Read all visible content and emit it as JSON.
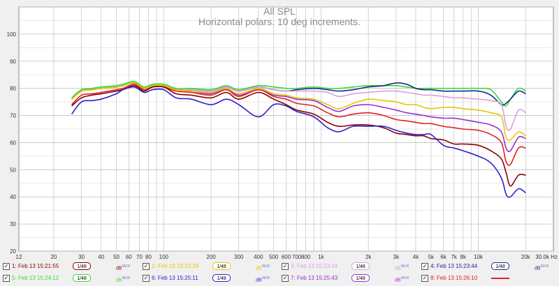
{
  "chart_data": {
    "type": "line",
    "title": "All SPL",
    "subtitle": "Horizontal polars. 10 deg increments.",
    "xscale": "log",
    "xlim": [
      12,
      30000
    ],
    "ylim": [
      20,
      110
    ],
    "x_ticks": [
      {
        "v": 12,
        "t": "12"
      },
      {
        "v": 20,
        "t": "20"
      },
      {
        "v": 30,
        "t": "30"
      },
      {
        "v": 40,
        "t": "40"
      },
      {
        "v": 50,
        "t": "50"
      },
      {
        "v": 60,
        "t": "60"
      },
      {
        "v": 70,
        "t": "70"
      },
      {
        "v": 80,
        "t": "80"
      },
      {
        "v": 100,
        "t": "100"
      },
      {
        "v": 200,
        "t": "200"
      },
      {
        "v": 300,
        "t": "300"
      },
      {
        "v": 400,
        "t": "400"
      },
      {
        "v": 500,
        "t": "500"
      },
      {
        "v": 600,
        "t": "600"
      },
      {
        "v": 700,
        "t": "700"
      },
      {
        "v": 800,
        "t": "800"
      },
      {
        "v": 1000,
        "t": "1k"
      },
      {
        "v": 2000,
        "t": "2k"
      },
      {
        "v": 3000,
        "t": "3k"
      },
      {
        "v": 4000,
        "t": "4k"
      },
      {
        "v": 5000,
        "t": "5k"
      },
      {
        "v": 6000,
        "t": "6k"
      },
      {
        "v": 7000,
        "t": "7k"
      },
      {
        "v": 8000,
        "t": "8k"
      },
      {
        "v": 10000,
        "t": "10k"
      },
      {
        "v": 20000,
        "t": "20k"
      },
      {
        "v": 30000,
        "t": "30.0k Hz"
      }
    ],
    "y_ticks": [
      20,
      30,
      40,
      50,
      60,
      70,
      80,
      90,
      100
    ],
    "grid": true,
    "x": [
      26,
      30,
      35,
      40,
      50,
      55,
      65,
      75,
      85,
      100,
      120,
      150,
      200,
      250,
      300,
      400,
      500,
      600,
      700,
      900,
      1100,
      1300,
      1600,
      2000,
      2500,
      3000,
      3500,
      4000,
      4500,
      5000,
      6000,
      7000,
      8000,
      10000,
      12000,
      14000,
      15000,
      16000,
      18000,
      20000
    ],
    "series": [
      {
        "name": "1: Feb 13 15:21:55",
        "color": "#8b0000",
        "values": [
          73.5,
          76.5,
          77.5,
          78,
          79,
          79.5,
          81,
          79,
          80.5,
          80.5,
          78,
          77.5,
          76.5,
          78.5,
          76,
          78.5,
          76,
          74,
          72,
          70.5,
          67.5,
          66,
          66.5,
          66.5,
          65.5,
          63.5,
          63,
          62.5,
          62.5,
          61.5,
          61,
          59.5,
          59.5,
          59,
          57,
          54,
          49,
          44,
          48,
          48
        ]
      },
      {
        "name": "2: Feb 13 15:22:29",
        "color": "#e6c800",
        "values": [
          76,
          79,
          79.5,
          80,
          80.5,
          81,
          82,
          80,
          81,
          81,
          79.5,
          79,
          78.5,
          80,
          78,
          80,
          78,
          77.5,
          76.5,
          76,
          74,
          72.5,
          74.5,
          76,
          75.5,
          75,
          74,
          74,
          73,
          72.5,
          73,
          73,
          72.5,
          72,
          71,
          69.5,
          62,
          61,
          64,
          62.5
        ]
      },
      {
        "name": "3: Feb 13 15:23:14",
        "color": "#d8a0e0",
        "values": [
          76,
          79,
          79.5,
          80,
          80.5,
          81,
          82,
          80,
          81,
          81,
          79.5,
          79.5,
          79,
          80.5,
          79,
          80.5,
          79.5,
          79,
          79,
          79,
          78.5,
          77,
          78,
          78.5,
          79,
          79,
          78.5,
          78,
          77.5,
          77.5,
          77,
          76.5,
          76.5,
          76,
          75.5,
          74,
          66,
          65,
          72,
          71
        ]
      },
      {
        "name": "4: Feb 13 15:23:44",
        "color": "#1e2a8c",
        "values": [
          76,
          79,
          79.5,
          80,
          80.5,
          81,
          82,
          80,
          81,
          81,
          79.5,
          79.5,
          79,
          80.5,
          79,
          80.5,
          79.5,
          79,
          79.5,
          80,
          79.5,
          79,
          79.5,
          80.5,
          81,
          82,
          81.5,
          80,
          79.5,
          79.5,
          79,
          79,
          79,
          79,
          77.5,
          74,
          74.5,
          76,
          79,
          78
        ]
      },
      {
        "name": "5: Feb 13 15:24:12",
        "color": "#33dd33",
        "values": [
          76.5,
          79.5,
          80,
          80.5,
          81,
          81.5,
          82.5,
          80.5,
          81.5,
          81.5,
          80,
          80,
          79.5,
          81,
          79.5,
          81,
          80.5,
          80,
          80,
          80.5,
          80,
          80,
          80.5,
          81,
          81,
          81,
          80.5,
          80,
          80,
          80,
          80,
          80,
          80,
          80,
          79.5,
          75,
          73.5,
          76,
          80,
          79
        ]
      },
      {
        "name": "6: Feb 13 15:25:11",
        "color": "#3020c8",
        "values": [
          70.5,
          75,
          75.5,
          76,
          78,
          79.5,
          80.5,
          78.5,
          79.5,
          79.5,
          76.5,
          76,
          74,
          76,
          74,
          69.5,
          74,
          73.5,
          71.5,
          69.5,
          65.5,
          64,
          66,
          66,
          66,
          64.5,
          63.5,
          63,
          63,
          63,
          59,
          58,
          57,
          55,
          52.5,
          47,
          41,
          40,
          43,
          41.5
        ]
      },
      {
        "name": "7: Feb 13 15:25:43",
        "color": "#9932cc",
        "values": [
          76,
          79,
          79.5,
          80,
          80.5,
          81,
          82,
          80,
          81,
          81,
          79.5,
          79,
          78,
          80,
          77.5,
          79.5,
          77.5,
          77,
          76,
          75.5,
          73,
          71.5,
          73.5,
          74,
          73,
          72,
          71,
          70.5,
          70,
          69.5,
          69,
          69,
          68.5,
          67.5,
          66.5,
          64,
          58,
          57,
          62,
          61.5
        ]
      },
      {
        "name": "8: Feb 13 15:26:10",
        "color": "#e02020",
        "values": [
          74,
          77.5,
          78,
          78.5,
          79.5,
          80,
          81.5,
          79.5,
          80.5,
          80.5,
          79,
          78.5,
          77.5,
          79.5,
          77,
          79.5,
          77,
          76,
          74.5,
          73.5,
          71,
          69.5,
          70.5,
          71,
          70,
          68.5,
          68,
          67.5,
          67,
          67,
          66,
          65.5,
          65,
          64.5,
          63,
          60,
          53,
          52,
          58,
          58
        ]
      }
    ]
  },
  "legend": [
    {
      "label": "1: Feb 13 15:21:55",
      "color": "#8b0000",
      "smooth": "1/48",
      "checked": "✓",
      "db": "dB",
      "new": "NEW"
    },
    {
      "label": "2: Feb 13 15:22:29",
      "color": "#e6c800",
      "smooth": "1/48",
      "checked": "✓",
      "db": "dB",
      "new": "NEW"
    },
    {
      "label": "3: Feb 13 15:23:14",
      "color": "#d8a0e0",
      "smooth": "1/48",
      "checked": "✓",
      "db": "dB",
      "new": "NEW"
    },
    {
      "label": "4: Feb 13 15:23:44",
      "color": "#1e2a8c",
      "smooth": "1/48",
      "checked": "✓",
      "db": "dB",
      "new": "NEW"
    },
    {
      "label": "5: Feb 13 15:24:12",
      "color": "#33dd33",
      "smooth": "1/48",
      "checked": "✓",
      "db": "dB",
      "new": "NEW"
    },
    {
      "label": "6: Feb 13 15:25:11",
      "color": "#3020c8",
      "smooth": "1/48",
      "checked": "✓",
      "db": "dB",
      "new": "NEW"
    },
    {
      "label": "7: Feb 13 15:25:43",
      "color": "#9932cc",
      "smooth": "1/48",
      "checked": "✓",
      "db": "dB",
      "new": "NEW"
    },
    {
      "label": "8: Feb 13 15:26:10",
      "color": "#e02020",
      "smooth": "",
      "checked": "✓",
      "db": "",
      "new": ""
    }
  ]
}
